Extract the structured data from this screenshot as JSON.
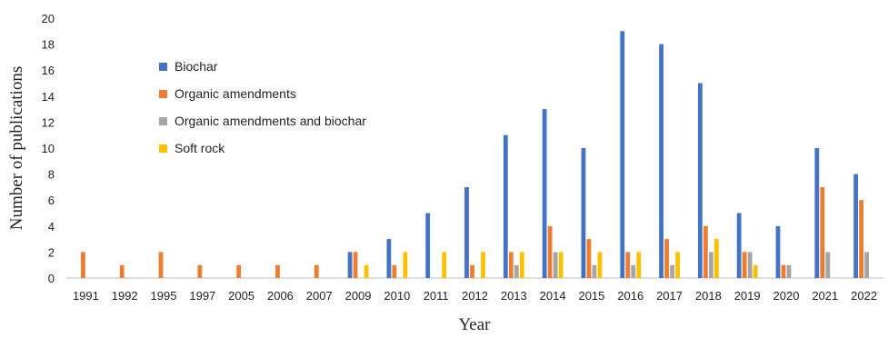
{
  "chart_data": {
    "type": "bar",
    "xlabel": "Year",
    "ylabel": "Number of publications",
    "ylim": [
      0,
      20
    ],
    "yticks": [
      "0",
      "2",
      "4",
      "6",
      "8",
      "10",
      "12",
      "14",
      "16",
      "18",
      "20"
    ],
    "grid": false,
    "legend_position": "upper-left",
    "categories": [
      "1991",
      "1992",
      "1995",
      "1997",
      "2005",
      "2006",
      "2007",
      "2009",
      "2010",
      "2011",
      "2012",
      "2013",
      "2014",
      "2015",
      "2016",
      "2017",
      "2018",
      "2019",
      "2020",
      "2021",
      "2022"
    ],
    "series": [
      {
        "name": "Biochar",
        "color": "#4472C4",
        "values": [
          0,
          0,
          0,
          0,
          0,
          0,
          0,
          2,
          3,
          5,
          7,
          11,
          13,
          10,
          19,
          18,
          15,
          5,
          4,
          10,
          8
        ]
      },
      {
        "name": "Organic amendments",
        "color": "#ED7D31",
        "values": [
          2,
          1,
          2,
          1,
          1,
          1,
          1,
          2,
          1,
          0,
          1,
          2,
          4,
          3,
          2,
          3,
          4,
          2,
          1,
          7,
          6
        ]
      },
      {
        "name": "Organic amendments and biochar",
        "color": "#A5A5A5",
        "values": [
          0,
          0,
          0,
          0,
          0,
          0,
          0,
          0,
          0,
          0,
          0,
          1,
          2,
          1,
          1,
          1,
          2,
          2,
          1,
          2,
          2
        ]
      },
      {
        "name": "Soft rock",
        "color": "#FFC000",
        "values": [
          0,
          0,
          0,
          0,
          0,
          0,
          0,
          1,
          2,
          2,
          2,
          2,
          2,
          2,
          2,
          2,
          3,
          1,
          0,
          0,
          0
        ]
      }
    ]
  }
}
